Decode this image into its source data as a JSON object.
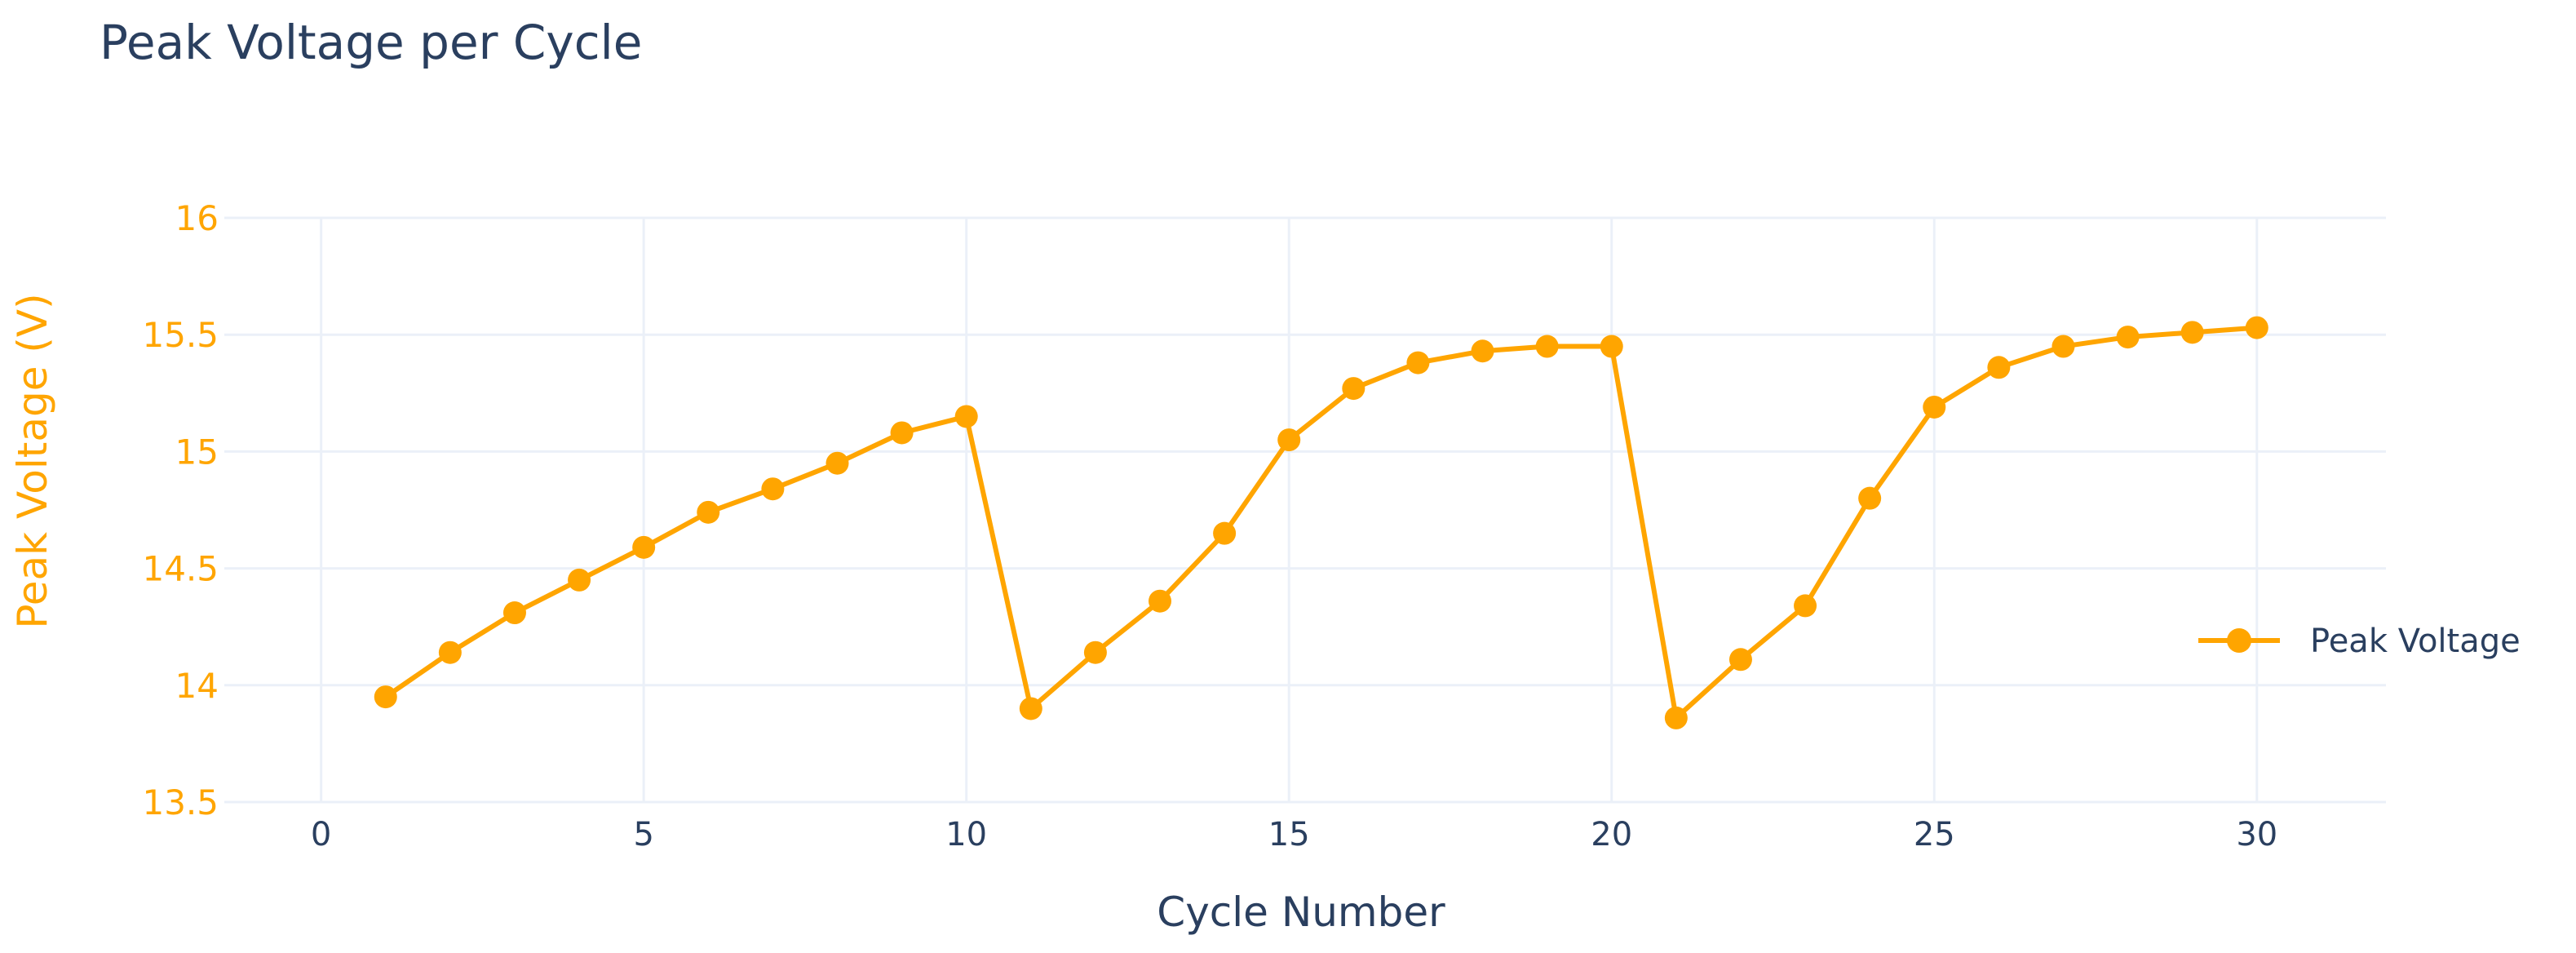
{
  "chart_data": {
    "type": "line",
    "title": "Peak Voltage per Cycle",
    "xlabel": "Cycle Number",
    "ylabel": "Peak Voltage (V)",
    "xlim": [
      -1.5,
      32
    ],
    "ylim": [
      13.5,
      16
    ],
    "x_ticks": [
      0,
      5,
      10,
      15,
      20,
      25,
      30
    ],
    "y_ticks": [
      13.5,
      14,
      14.5,
      15,
      15.5,
      16
    ],
    "x_tick_labels": [
      "0",
      "5",
      "10",
      "15",
      "20",
      "25",
      "30"
    ],
    "y_tick_labels": [
      "13.5",
      "14",
      "14.5",
      "15",
      "15.5",
      "16"
    ],
    "grid": true,
    "legend_position": "right",
    "series": [
      {
        "name": "Peak Voltage",
        "color": "#FFA500",
        "mode": "lines+markers",
        "x": [
          1,
          2,
          3,
          4,
          5,
          6,
          7,
          8,
          9,
          10,
          11,
          12,
          13,
          14,
          15,
          16,
          17,
          18,
          19,
          20,
          21,
          22,
          23,
          24,
          25,
          26,
          27,
          28,
          29,
          30
        ],
        "y": [
          13.95,
          14.14,
          14.31,
          14.45,
          14.59,
          14.74,
          14.84,
          14.95,
          15.08,
          15.15,
          13.9,
          14.14,
          14.36,
          14.65,
          15.05,
          15.27,
          15.38,
          15.43,
          15.45,
          15.45,
          13.86,
          14.11,
          14.34,
          14.8,
          15.19,
          15.36,
          15.45,
          15.49,
          15.51,
          15.53
        ]
      }
    ]
  },
  "colors": {
    "axis_accent": "#FFA500",
    "text": "#2a3f5f",
    "grid": "#ebf0f8"
  }
}
